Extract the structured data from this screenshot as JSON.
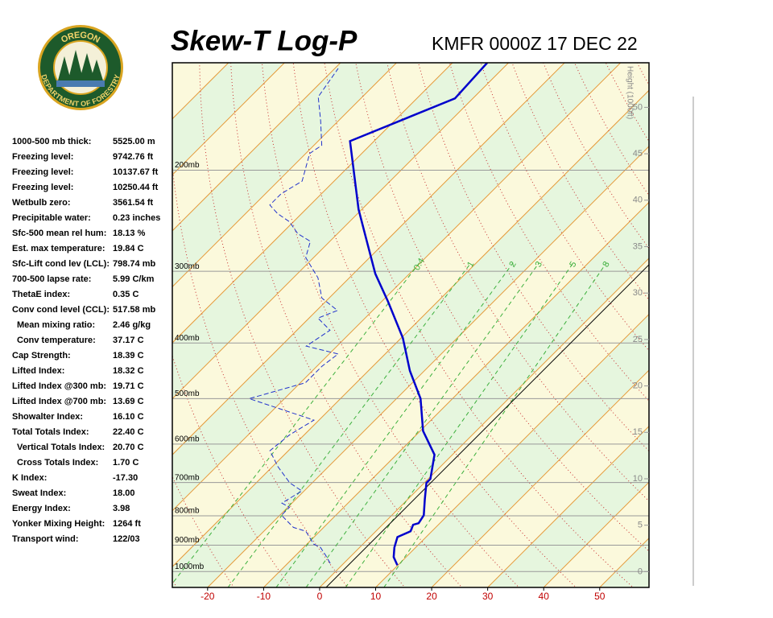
{
  "logo": {
    "top_text": "OREGON",
    "bottom_text": "DEPARTMENT OF FORESTRY"
  },
  "indices": [
    [
      "1000-500 mb thick:",
      "5525.00 m"
    ],
    [
      "Freezing level:",
      "9742.76 ft"
    ],
    [
      "Freezing level:",
      "10137.67 ft"
    ],
    [
      "Freezing level:",
      "10250.44 ft"
    ],
    [
      "Wetbulb zero:",
      "3561.54 ft"
    ],
    [
      "Precipitable water:",
      "0.23 inches"
    ],
    [
      "Sfc-500 mean rel hum:",
      "18.13 %"
    ],
    [
      "Est. max temperature:",
      "19.84 C"
    ],
    [
      "Sfc-Lift cond lev (LCL):",
      "798.74 mb"
    ],
    [
      "700-500 lapse rate:",
      "5.99 C/km"
    ],
    [
      "ThetaE index:",
      "0.35 C"
    ],
    [
      "Conv cond level (CCL):",
      "517.58 mb"
    ],
    [
      "Mean mixing ratio:",
      "2.46 g/kg"
    ],
    [
      "Conv temperature:",
      "37.17 C"
    ],
    [
      "Cap Strength:",
      "18.39 C"
    ],
    [
      "Lifted Index:",
      "18.32 C"
    ],
    [
      "Lifted Index @300 mb:",
      "19.71 C"
    ],
    [
      "Lifted Index @700 mb:",
      "13.69 C"
    ],
    [
      "Showalter Index:",
      "16.10 C"
    ],
    [
      "Total Totals Index:",
      "22.40 C"
    ],
    [
      "Vertical Totals Index:",
      "20.70 C"
    ],
    [
      "Cross Totals Index:",
      "1.70 C"
    ],
    [
      "K Index:",
      "-17.30"
    ],
    [
      "Sweat Index:",
      "18.00"
    ],
    [
      "Energy Index:",
      "3.98"
    ],
    [
      "Yonker Mixing Height:",
      "1264 ft"
    ],
    [
      "Transport wind:",
      "122/03"
    ]
  ],
  "chart_data": {
    "type": "skewt",
    "title": "Skew-T Log-P",
    "subtitle": "KMFR 0000Z 17 DEC 22",
    "xlim": [
      -26.3,
      58.8
    ],
    "xticks": [
      -20,
      -10,
      0,
      10,
      20,
      30,
      40,
      50
    ],
    "ylim": [
      1066,
      130
    ],
    "log_y": true,
    "skew_degrees": 45,
    "yticks": [
      {
        "value": 200,
        "label": "200mb"
      },
      {
        "value": 300,
        "label": "300mb"
      },
      {
        "value": 400,
        "label": "400mb"
      },
      {
        "value": 500,
        "label": "500mb"
      },
      {
        "value": 600,
        "label": "600mb"
      },
      {
        "value": 700,
        "label": "700mb"
      },
      {
        "value": 800,
        "label": "800mb"
      },
      {
        "value": 900,
        "label": "900mb"
      },
      {
        "value": 1000,
        "label": "1000mb"
      }
    ],
    "y2_label": "Height (1000ft)",
    "y2lim": [
      -1.7,
      54.8
    ],
    "y2ticks": [
      0,
      5,
      10,
      15,
      20,
      25,
      30,
      35,
      40,
      45,
      50
    ],
    "mixing_ratio_lines": [
      0.4,
      1,
      2,
      3,
      5,
      8
    ],
    "series": [
      {
        "color": "#0000cc",
        "pressure": [
          975,
          944,
          908,
          871,
          851,
          829,
          824,
          798,
          748,
          701,
          690,
          626,
          569,
          500,
          447,
          392,
          339,
          303,
          266,
          234,
          178,
          150,
          130
        ],
        "values": [
          9.9,
          7.8,
          6.2,
          4.9,
          6.2,
          5.5,
          6.2,
          5.7,
          3.0,
          0.4,
          0.4,
          -3.2,
          -9.5,
          -15.7,
          -22.6,
          -29.7,
          -38.8,
          -46.1,
          -53.4,
          -60.6,
          -74.3,
          -63.2,
          -63.8
        ]
      },
      {
        "color": "#2233cc",
        "dashed": true,
        "pressure": [
          968,
          938,
          908,
          896,
          851,
          838,
          798,
          773,
          760,
          724,
          701,
          657,
          616,
          578,
          545,
          500,
          469,
          439,
          418,
          405,
          380,
          362,
          351,
          334,
          308,
          284,
          266,
          258,
          246,
          238,
          230,
          220,
          209,
          187,
          181,
          164,
          149,
          133
        ],
        "values": [
          -2.4,
          -4.6,
          -7.0,
          -8.8,
          -12.5,
          -15.4,
          -19.7,
          -19.7,
          -21.8,
          -20.4,
          -24.0,
          -29.0,
          -33.3,
          -32.6,
          -30.9,
          -46.3,
          -39.1,
          -39.1,
          -38.4,
          -45.5,
          -44.1,
          -48.4,
          -46.3,
          -51.3,
          -55.6,
          -61.4,
          -63.5,
          -67.1,
          -70.7,
          -74.3,
          -77.2,
          -77.2,
          -75.7,
          -79.3,
          -78.6,
          -83.2,
          -87.9,
          -89.4
        ]
      }
    ]
  }
}
